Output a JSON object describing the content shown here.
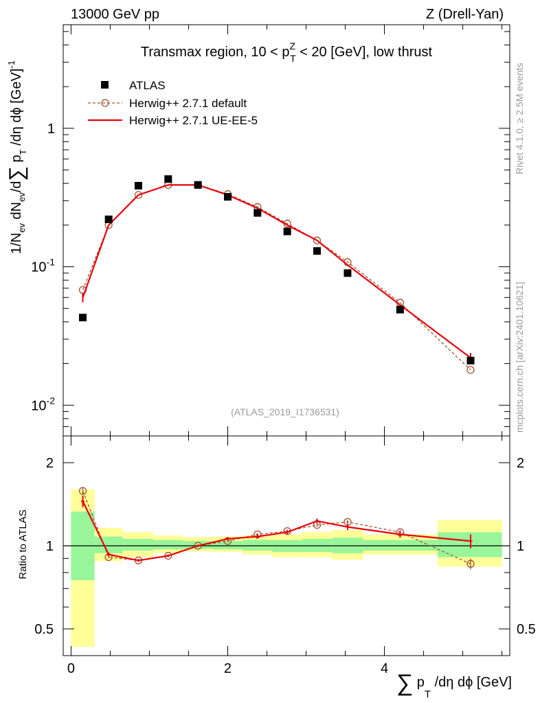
{
  "header": {
    "energy_label": "13000 GeV pp",
    "process_label": "Z (Drell-Yan)"
  },
  "side": {
    "rivet_label": "Rivet 4.1.0, ≥ 2.5M events",
    "mcplots_label": "mcplots.cern.ch [arXiv:2401.10621]"
  },
  "chart_data": {
    "type": "line",
    "title": "Transmax region, 10 < p_T^Z < 20 [GeV], low thrust",
    "analysis_id": "(ATLAS_2019_I1736531)",
    "xlabel": "∑ p_T /dη dφ [GeV]",
    "ylabel": "1/N_ev dN_ev/d∑ p_T /dη dφ [GeV]^-1",
    "ratio_ylabel": "Ratio to ATLAS",
    "xlim": [
      -0.1,
      5.6
    ],
    "ylim": [
      0.006,
      5.6
    ],
    "yscale": "log",
    "ratio_ylim": [
      0.4,
      2.5
    ],
    "x_ticks": [
      "0",
      "2",
      "4"
    ],
    "y_ticks": [
      "10^-2",
      "10^-1",
      "1"
    ],
    "ratio_ticks": [
      "0.5",
      "1",
      "2"
    ],
    "x": [
      0.15,
      0.48,
      0.86,
      1.24,
      1.62,
      2.0,
      2.38,
      2.76,
      3.14,
      3.53,
      4.2,
      5.1
    ],
    "bin_edges": [
      0.0,
      0.3,
      0.66,
      1.05,
      1.43,
      1.81,
      2.19,
      2.57,
      2.95,
      3.33,
      3.73,
      4.68,
      5.5
    ],
    "series": [
      {
        "name": "ATLAS",
        "marker": "square",
        "values": [
          0.043,
          0.22,
          0.385,
          0.43,
          0.39,
          0.32,
          0.245,
          0.18,
          0.13,
          0.09,
          0.049,
          0.021
        ]
      },
      {
        "name": "Herwig++ 2.7.1 default",
        "marker": "open-circle",
        "linestyle": "dashed",
        "values": [
          0.068,
          0.2,
          0.33,
          0.39,
          0.39,
          0.335,
          0.27,
          0.205,
          0.155,
          0.108,
          0.055,
          0.018
        ],
        "ratio": [
          1.58,
          0.91,
          0.885,
          0.92,
          1.0,
          1.04,
          1.1,
          1.13,
          1.19,
          1.22,
          1.12,
          0.86
        ],
        "ratio_err": [
          0.05,
          0.01,
          0.01,
          0.01,
          0.01,
          0.01,
          0.015,
          0.015,
          0.02,
          0.02,
          0.02,
          0.04
        ]
      },
      {
        "name": "Herwig++ 2.7.1 UE-EE-5",
        "marker": "none",
        "linestyle": "solid",
        "values": [
          0.06,
          0.2,
          0.33,
          0.39,
          0.39,
          0.33,
          0.265,
          0.2,
          0.155,
          0.103,
          0.053,
          0.022
        ],
        "ratio": [
          1.45,
          0.93,
          0.885,
          0.92,
          1.0,
          1.06,
          1.08,
          1.12,
          1.23,
          1.17,
          1.1,
          1.04
        ],
        "ratio_err": [
          0.07,
          0.015,
          0.01,
          0.01,
          0.01,
          0.015,
          0.02,
          0.02,
          0.025,
          0.03,
          0.03,
          0.06
        ]
      }
    ],
    "ratio_bands": {
      "stat_low": [
        0.75,
        0.94,
        0.96,
        0.97,
        0.975,
        0.97,
        0.96,
        0.95,
        0.95,
        0.94,
        0.96,
        0.91
      ],
      "stat_high": [
        1.33,
        1.08,
        1.06,
        1.05,
        1.04,
        1.04,
        1.05,
        1.05,
        1.06,
        1.07,
        1.05,
        1.12
      ],
      "total_low": [
        0.43,
        0.88,
        0.91,
        0.94,
        0.955,
        0.95,
        0.93,
        0.91,
        0.91,
        0.89,
        0.93,
        0.84
      ],
      "total_high": [
        1.6,
        1.16,
        1.12,
        1.09,
        1.075,
        1.08,
        1.09,
        1.1,
        1.12,
        1.14,
        1.1,
        1.24
      ]
    },
    "colors": {
      "data": "#000000",
      "default": "#a0522d",
      "ueee5": "#e8000b",
      "band_inner": "#99f599",
      "band_outer": "#ffff99"
    }
  }
}
